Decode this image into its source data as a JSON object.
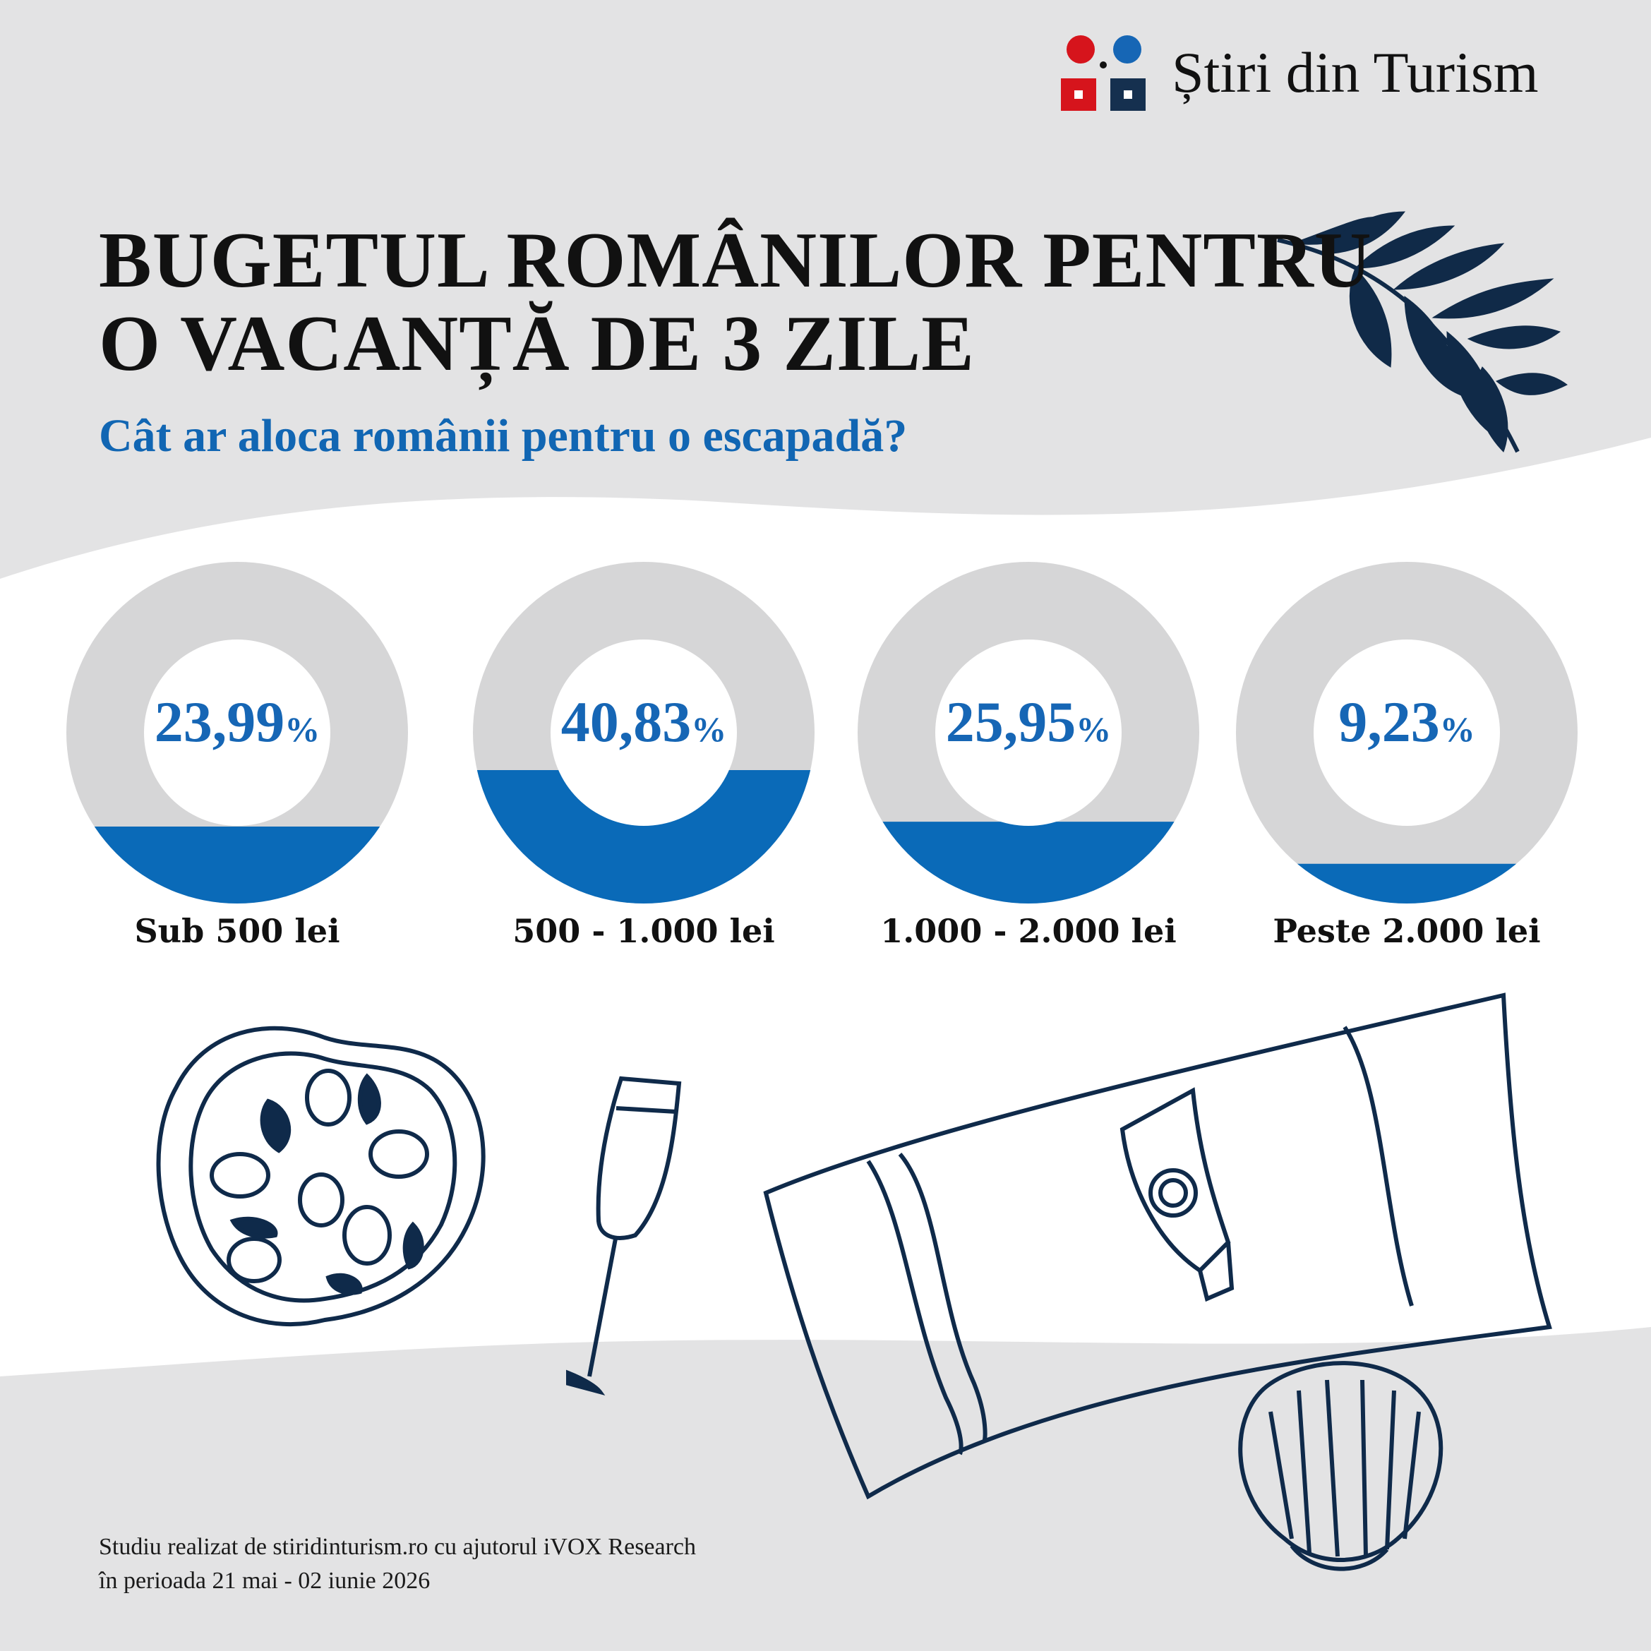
{
  "brand": {
    "name": "Știri din Turism"
  },
  "header": {
    "title_line1": "BUGETUL ROMÂNILOR PENTRU",
    "title_line2": "O VACANȚĂ DE 3 ZILE",
    "subtitle": "Cât ar aloca românii pentru o escapadă?"
  },
  "chart_data": {
    "type": "pie",
    "title": "BUGETUL ROMÂNILOR PENTRU O VACANȚĂ DE 3 ZILE",
    "subtitle": "Cât ar aloca românii pentru o escapadă?",
    "unit": "%",
    "categories": [
      "Sub 500 lei",
      "500 - 1.000 lei",
      "1.000 - 2.000 lei",
      "Peste 2.000 lei"
    ],
    "values": [
      23.99,
      40.83,
      25.95,
      9.23
    ],
    "value_labels": [
      "23,99",
      "40,83",
      "25,95",
      "9,23"
    ],
    "colors": {
      "fill": "#0a6ab8",
      "track": "#d6d6d7",
      "label": "#1666b5"
    }
  },
  "footer": {
    "line1": "Studiu realizat de stiridinturism.ro cu ajutorul iVOX Research",
    "line2": "în perioada 21 mai - 02 iunie 2026"
  },
  "icons": [
    "logo-icon",
    "olive-branch-icon",
    "pizza-icon",
    "champagne-glass-icon",
    "beach-towel-icon",
    "sunscreen-icon",
    "seashell-icon"
  ],
  "colors": {
    "background": "#e3e3e4",
    "white_band": "#ffffff",
    "navy": "#0f2a4a",
    "red": "#d6141c",
    "blue": "#1666b5"
  }
}
